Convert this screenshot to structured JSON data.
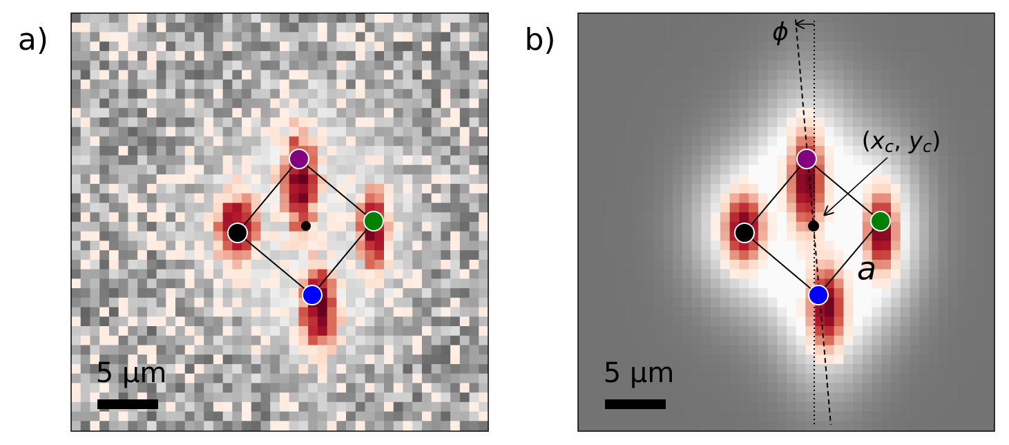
{
  "panels": [
    {
      "label": "a)",
      "scale_bar": "5 μm"
    },
    {
      "label": "b)",
      "scale_bar": "5 μm",
      "annotations": {
        "phi": "ϕ",
        "center": [
          "(",
          "x",
          "c",
          ", ",
          "y",
          "c",
          ")"
        ],
        "side": "a"
      }
    }
  ]
}
